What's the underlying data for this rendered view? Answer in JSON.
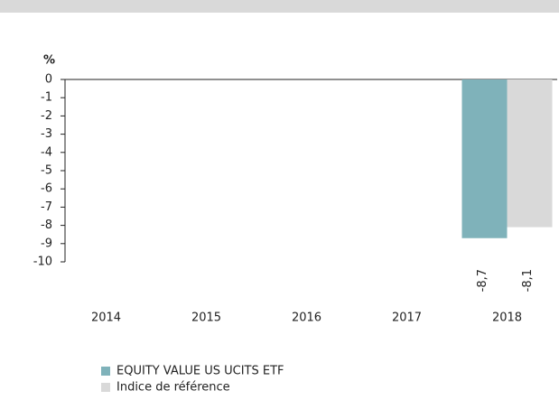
{
  "chart_data": {
    "type": "bar",
    "y_label": "%",
    "categories": [
      "2014",
      "2015",
      "2016",
      "2017",
      "2018"
    ],
    "series": [
      {
        "name": "EQUITY VALUE US UCITS ETF",
        "color": "#7fb2ba",
        "values": [
          null,
          null,
          null,
          null,
          -8.7
        ],
        "value_labels": [
          null,
          null,
          null,
          null,
          "-8,7"
        ]
      },
      {
        "name": "Indice de référence",
        "color": "#d9d9d9",
        "values": [
          null,
          null,
          null,
          null,
          -8.1
        ],
        "value_labels": [
          null,
          null,
          null,
          null,
          "-8,1"
        ]
      }
    ],
    "ylim": [
      -10,
      0
    ],
    "yticks": [
      0,
      -1,
      -2,
      -3,
      -4,
      -5,
      -6,
      -7,
      -8,
      -9,
      -10
    ]
  }
}
